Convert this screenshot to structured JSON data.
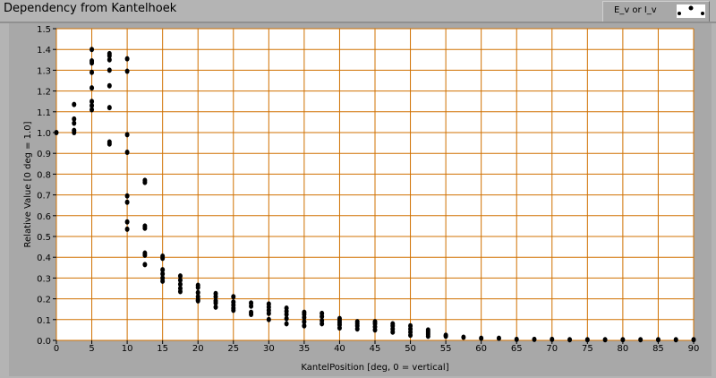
{
  "title": "Dependency from Kantelhoek",
  "legend": {
    "label": "E_v or I_v"
  },
  "colors": {
    "grid": "#d07000",
    "plot_bg": "#ffffff",
    "points": "#000000"
  },
  "chart_data": {
    "type": "scatter",
    "title": "Dependency from Kantelhoek",
    "xlabel": "KantelPosition [deg, 0 = vertical]",
    "ylabel": "Relative Value [0 deg = 1.0]",
    "xlim": [
      0,
      90
    ],
    "ylim": [
      0,
      1.5
    ],
    "xticks": [
      0,
      5,
      10,
      15,
      20,
      25,
      30,
      35,
      40,
      45,
      50,
      55,
      60,
      65,
      70,
      75,
      80,
      85,
      90
    ],
    "yticks": [
      "0.0",
      "0.1",
      "0.2",
      "0.3",
      "0.4",
      "0.5",
      "0.6",
      "0.7",
      "0.8",
      "0.9",
      "1.0",
      "1.1",
      "1.2",
      "1.3",
      "1.4",
      "1.5"
    ],
    "grid": true,
    "series": [
      {
        "name": "E_v or I_v",
        "points": [
          [
            0,
            1.0
          ],
          [
            2.5,
            1.135
          ],
          [
            2.5,
            1.065
          ],
          [
            2.5,
            1.045
          ],
          [
            2.5,
            1.01
          ],
          [
            2.5,
            1.0
          ],
          [
            5,
            1.4
          ],
          [
            5,
            1.345
          ],
          [
            5,
            1.335
          ],
          [
            5,
            1.29
          ],
          [
            5,
            1.215
          ],
          [
            5,
            1.15
          ],
          [
            5,
            1.13
          ],
          [
            5,
            1.11
          ],
          [
            7.5,
            1.38
          ],
          [
            7.5,
            1.37
          ],
          [
            7.5,
            1.35
          ],
          [
            7.5,
            1.3
          ],
          [
            7.5,
            1.225
          ],
          [
            7.5,
            1.12
          ],
          [
            7.5,
            0.955
          ],
          [
            7.5,
            0.945
          ],
          [
            10,
            1.355
          ],
          [
            10,
            1.295
          ],
          [
            10,
            0.99
          ],
          [
            10,
            0.905
          ],
          [
            10,
            0.695
          ],
          [
            10,
            0.665
          ],
          [
            10,
            0.57
          ],
          [
            10,
            0.535
          ],
          [
            12.5,
            0.77
          ],
          [
            12.5,
            0.76
          ],
          [
            12.5,
            0.55
          ],
          [
            12.5,
            0.54
          ],
          [
            12.5,
            0.42
          ],
          [
            12.5,
            0.41
          ],
          [
            12.5,
            0.365
          ],
          [
            15,
            0.405
          ],
          [
            15,
            0.395
          ],
          [
            15,
            0.34
          ],
          [
            15,
            0.32
          ],
          [
            15,
            0.3
          ],
          [
            15,
            0.285
          ],
          [
            17.5,
            0.31
          ],
          [
            17.5,
            0.29
          ],
          [
            17.5,
            0.27
          ],
          [
            17.5,
            0.25
          ],
          [
            17.5,
            0.235
          ],
          [
            20,
            0.265
          ],
          [
            20,
            0.255
          ],
          [
            20,
            0.23
          ],
          [
            20,
            0.21
          ],
          [
            20,
            0.195
          ],
          [
            20,
            0.19
          ],
          [
            22.5,
            0.225
          ],
          [
            22.5,
            0.21
          ],
          [
            22.5,
            0.19
          ],
          [
            22.5,
            0.18
          ],
          [
            22.5,
            0.16
          ],
          [
            25,
            0.21
          ],
          [
            25,
            0.185
          ],
          [
            25,
            0.17
          ],
          [
            25,
            0.155
          ],
          [
            25,
            0.145
          ],
          [
            27.5,
            0.18
          ],
          [
            27.5,
            0.165
          ],
          [
            27.5,
            0.135
          ],
          [
            27.5,
            0.125
          ],
          [
            30,
            0.175
          ],
          [
            30,
            0.16
          ],
          [
            30,
            0.145
          ],
          [
            30,
            0.13
          ],
          [
            30,
            0.1
          ],
          [
            32.5,
            0.155
          ],
          [
            32.5,
            0.14
          ],
          [
            32.5,
            0.125
          ],
          [
            32.5,
            0.105
          ],
          [
            32.5,
            0.08
          ],
          [
            35,
            0.135
          ],
          [
            35,
            0.125
          ],
          [
            35,
            0.11
          ],
          [
            35,
            0.09
          ],
          [
            35,
            0.07
          ],
          [
            37.5,
            0.13
          ],
          [
            37.5,
            0.115
          ],
          [
            37.5,
            0.095
          ],
          [
            37.5,
            0.08
          ],
          [
            40,
            0.105
          ],
          [
            40,
            0.095
          ],
          [
            40,
            0.085
          ],
          [
            40,
            0.075
          ],
          [
            40,
            0.06
          ],
          [
            42.5,
            0.09
          ],
          [
            42.5,
            0.08
          ],
          [
            42.5,
            0.07
          ],
          [
            42.5,
            0.055
          ],
          [
            45,
            0.09
          ],
          [
            45,
            0.08
          ],
          [
            45,
            0.065
          ],
          [
            45,
            0.05
          ],
          [
            47.5,
            0.08
          ],
          [
            47.5,
            0.07
          ],
          [
            47.5,
            0.055
          ],
          [
            47.5,
            0.04
          ],
          [
            50,
            0.07
          ],
          [
            50,
            0.055
          ],
          [
            50,
            0.04
          ],
          [
            50,
            0.025
          ],
          [
            52.5,
            0.05
          ],
          [
            52.5,
            0.04
          ],
          [
            52.5,
            0.03
          ],
          [
            52.5,
            0.02
          ],
          [
            55,
            0.025
          ],
          [
            55,
            0.02
          ],
          [
            57.5,
            0.015
          ],
          [
            60,
            0.01
          ],
          [
            62.5,
            0.01
          ],
          [
            65,
            0.005
          ],
          [
            67.5,
            0.005
          ],
          [
            70,
            0.005
          ],
          [
            72.5,
            0.003
          ],
          [
            75,
            0.003
          ],
          [
            77.5,
            0.003
          ],
          [
            80,
            0.003
          ],
          [
            82.5,
            0.003
          ],
          [
            85,
            0.003
          ],
          [
            87.5,
            0.003
          ],
          [
            90,
            0.003
          ]
        ]
      }
    ]
  }
}
